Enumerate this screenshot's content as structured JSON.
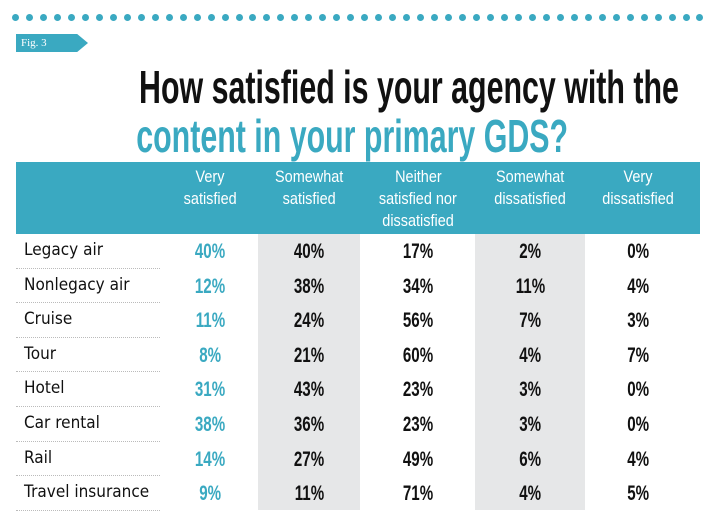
{
  "figure_tag": "Fig. 3",
  "title_line1": "How satisfied is your agency with the",
  "title_line2": "content in your primary GDS?",
  "colors": {
    "accent": "#3aa9c1",
    "shaded_column": "#e6e7e8",
    "text": "#111111"
  },
  "chart_data": {
    "type": "table",
    "title": "How satisfied is your agency with the content in your primary GDS?",
    "columns": [
      "Very satisfied",
      "Somewhat satisfied",
      "Neither satisfied nor dissatisfied",
      "Somewhat dissatisfied",
      "Very dissatisfied"
    ],
    "column_header_lines": [
      [
        "Very",
        "satisfied"
      ],
      [
        "Somewhat",
        "satisfied"
      ],
      [
        "Neither",
        "satisfied nor",
        "dissatisfied"
      ],
      [
        "Somewhat",
        "dissatisfied"
      ],
      [
        "Very",
        "dissatisfied"
      ]
    ],
    "rows": [
      {
        "label": "Legacy air",
        "values": [
          "40%",
          "40%",
          "17%",
          "2%",
          "0%"
        ]
      },
      {
        "label": "Nonlegacy air",
        "values": [
          "12%",
          "38%",
          "34%",
          "11%",
          "4%"
        ]
      },
      {
        "label": "Cruise",
        "values": [
          "11%",
          "24%",
          "56%",
          "7%",
          "3%"
        ]
      },
      {
        "label": "Tour",
        "values": [
          "8%",
          "21%",
          "60%",
          "4%",
          "7%"
        ]
      },
      {
        "label": "Hotel",
        "values": [
          "31%",
          "43%",
          "23%",
          "3%",
          "0%"
        ]
      },
      {
        "label": "Car rental",
        "values": [
          "38%",
          "36%",
          "23%",
          "3%",
          "0%"
        ]
      },
      {
        "label": "Rail",
        "values": [
          "14%",
          "27%",
          "49%",
          "6%",
          "4%"
        ]
      },
      {
        "label": "Travel insurance",
        "values": [
          "9%",
          "11%",
          "71%",
          "4%",
          "5%"
        ]
      }
    ]
  }
}
